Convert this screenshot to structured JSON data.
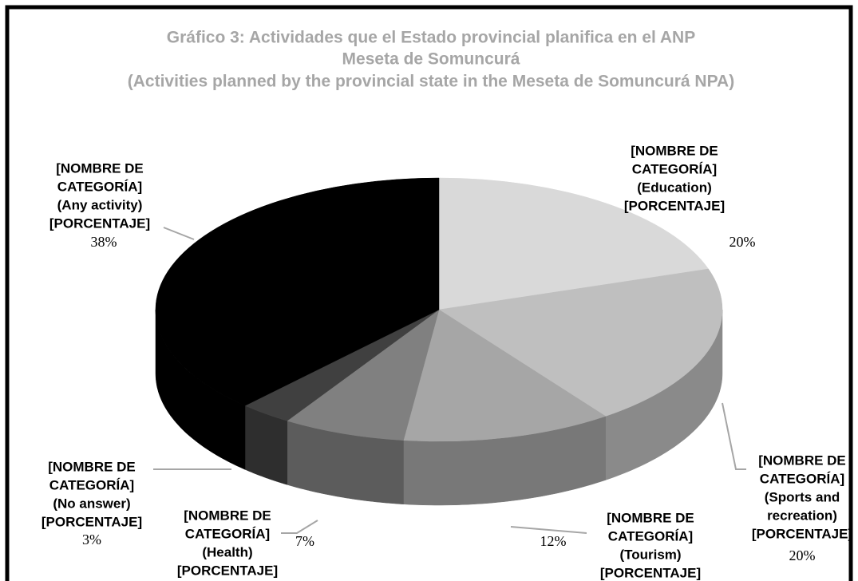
{
  "chart_data": {
    "type": "pie",
    "title": [
      "Gráfico 3: Actividades que el Estado provincial planifica en el ANP",
      "Meseta de Somuncurá",
      "(Activities planned by the provincial state in the Meseta de Somuncurá NPA)"
    ],
    "categories": [
      [
        "[NOMBRE DE",
        "CATEGORÍA]",
        "(Education)",
        "[PORCENTAJE]"
      ],
      [
        "[NOMBRE DE",
        "CATEGORÍA]",
        "(Sports and",
        "recreation)",
        "[PORCENTAJE]"
      ],
      [
        "[NOMBRE DE",
        "CATEGORÍA]",
        "(Tourism)",
        "[PORCENTAJE]"
      ],
      [
        "[NOMBRE DE",
        "CATEGORÍA]",
        "(Health)",
        "[PORCENTAJE]"
      ],
      [
        "[NOMBRE DE",
        "CATEGORÍA]",
        "(No answer)",
        "[PORCENTAJE]"
      ],
      [
        "[NOMBRE DE",
        "CATEGORÍA]",
        "(Any activity)",
        "[PORCENTAJE]"
      ]
    ],
    "values": [
      20,
      20,
      12,
      7,
      3,
      38
    ],
    "value_labels": [
      "20%",
      "20%",
      "12%",
      "7%",
      "3%",
      "38%"
    ],
    "colors": [
      "#d9d9d9",
      "#bfbfbf",
      "#a6a6a6",
      "#808080",
      "#404040",
      "#000000"
    ]
  }
}
